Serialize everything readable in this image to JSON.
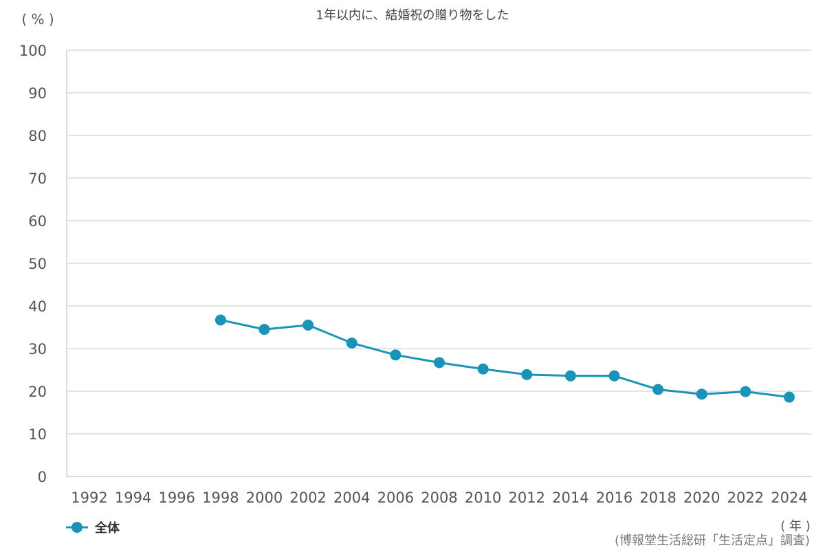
{
  "chart_data": {
    "type": "line",
    "title": "1年以内に、結婚祝の贈り物をした",
    "y_unit": "( % )",
    "x_unit": "( 年 )",
    "source": "(博報堂生活総研「生活定点」調査)",
    "ylim": [
      0,
      100
    ],
    "y_ticks": [
      "100",
      "90",
      "80",
      "70",
      "60",
      "50",
      "40",
      "30",
      "20",
      "10",
      "0"
    ],
    "categories": [
      "1992",
      "1994",
      "1996",
      "1998",
      "2000",
      "2002",
      "2004",
      "2006",
      "2008",
      "2010",
      "2012",
      "2014",
      "2016",
      "2018",
      "2020",
      "2022",
      "2024"
    ],
    "series": [
      {
        "name": "全体",
        "color": "#1a93b8",
        "values": [
          null,
          null,
          null,
          36.7,
          34.5,
          35.5,
          31.3,
          28.5,
          26.7,
          25.2,
          23.9,
          23.6,
          23.6,
          20.4,
          19.3,
          19.9,
          18.6
        ]
      }
    ],
    "grid": true,
    "legend_position": "bottom-left"
  }
}
